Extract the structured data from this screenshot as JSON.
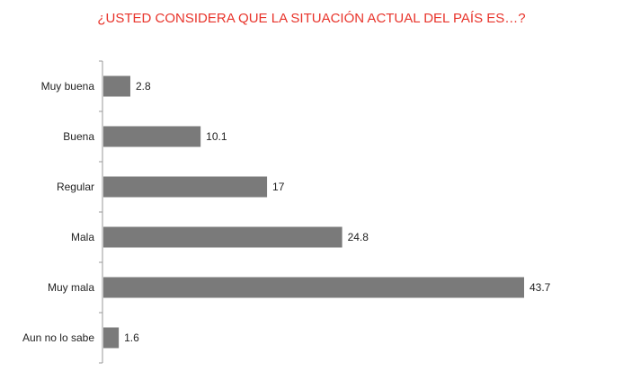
{
  "chart_data": {
    "type": "bar",
    "orientation": "horizontal",
    "title": "¿USTED CONSIDERA QUE LA SITUACIÓN ACTUAL DEL PAÍS ES…?",
    "categories": [
      "Muy buena",
      "Buena",
      "Regular",
      "Mala",
      "Muy mala",
      "Aun no lo sabe"
    ],
    "values": [
      2.8,
      10.1,
      17,
      24.8,
      43.7,
      1.6
    ],
    "value_labels": [
      "2.8",
      "10.1",
      "17",
      "24.8",
      "43.7",
      "1.6"
    ],
    "xlim": [
      0,
      43.7
    ],
    "grid": false,
    "legend": "none",
    "colors": {
      "bar": "#7a7a7a",
      "title": "#e8332a",
      "axis": "#9a9a9a",
      "text": "#222222"
    }
  }
}
